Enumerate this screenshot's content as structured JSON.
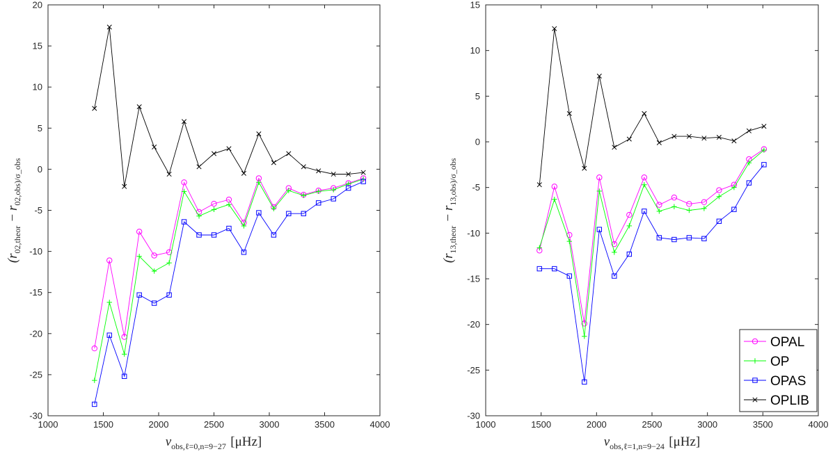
{
  "chart_data": [
    {
      "type": "line",
      "xlabel": "ν_obs,ℓ=0,n=9−27 [μHz]",
      "ylabel": "(r_02,theor − r_02,obs)/σ_obs",
      "xlim": [
        1000,
        4000
      ],
      "ylim": [
        -30,
        20
      ],
      "x_ticks": [
        "1000",
        "1500",
        "2000",
        "2500",
        "3000",
        "3500",
        "4000"
      ],
      "y_ticks": [
        "-30",
        "-25",
        "-20",
        "-15",
        "-10",
        "-5",
        "0",
        "5",
        "10",
        "15",
        "20"
      ],
      "x": [
        1420,
        1555,
        1690,
        1825,
        1960,
        2095,
        2230,
        2365,
        2500,
        2635,
        2770,
        2905,
        3040,
        3175,
        3310,
        3445,
        3580,
        3715,
        3850
      ],
      "series": [
        {
          "name": "OPAL",
          "color": "#ff00ff",
          "marker": "circle",
          "values": [
            -21.8,
            -11.1,
            -20.4,
            -7.6,
            -10.5,
            -10.1,
            -1.6,
            -5.2,
            -4.2,
            -3.7,
            -6.5,
            -1.1,
            -4.6,
            -2.3,
            -3.1,
            -2.6,
            -2.3,
            -1.7,
            -1.1
          ]
        },
        {
          "name": "OP",
          "color": "#00ff00",
          "marker": "plus",
          "values": [
            -25.7,
            -16.2,
            -22.5,
            -10.6,
            -12.4,
            -11.4,
            -2.7,
            -5.7,
            -4.9,
            -4.3,
            -6.9,
            -1.6,
            -4.8,
            -2.6,
            -3.2,
            -2.7,
            -2.5,
            -1.8,
            -1.2
          ]
        },
        {
          "name": "OPAS",
          "color": "#0000ff",
          "marker": "square",
          "values": [
            -28.6,
            -20.2,
            -25.2,
            -15.3,
            -16.3,
            -15.3,
            -6.4,
            -8.0,
            -8.0,
            -7.2,
            -10.1,
            -5.3,
            -8.0,
            -5.4,
            -5.4,
            -4.1,
            -3.6,
            -2.3,
            -1.5
          ]
        },
        {
          "name": "OPLIB",
          "color": "#000000",
          "marker": "cross",
          "values": [
            7.4,
            17.3,
            -2.1,
            7.6,
            2.7,
            -0.6,
            5.8,
            0.3,
            1.9,
            2.5,
            -0.5,
            4.3,
            0.8,
            1.9,
            0.3,
            -0.2,
            -0.6,
            -0.6,
            -0.4
          ]
        }
      ]
    },
    {
      "type": "line",
      "xlabel": "ν_obs,ℓ=1,n=9−24 [μHz]",
      "ylabel": "(r_13,theor − r_13,obs)/σ_obs",
      "xlim": [
        1000,
        4000
      ],
      "ylim": [
        -30,
        15
      ],
      "x_ticks": [
        "1000",
        "1500",
        "2000",
        "2500",
        "3000",
        "3500",
        "4000"
      ],
      "y_ticks": [
        "-30",
        "-25",
        "-20",
        "-15",
        "-10",
        "-5",
        "0",
        "5",
        "10",
        "15"
      ],
      "x": [
        1485,
        1620,
        1755,
        1890,
        2025,
        2160,
        2295,
        2430,
        2565,
        2700,
        2835,
        2970,
        3105,
        3240,
        3375,
        3510
      ],
      "legend": {
        "position": "bottom-right",
        "entries": [
          "OPAL",
          "OP",
          "OPAS",
          "OPLIB"
        ]
      },
      "series": [
        {
          "name": "OPAL",
          "color": "#ff00ff",
          "marker": "circle",
          "values": [
            -11.9,
            -4.9,
            -10.2,
            -19.9,
            -3.9,
            -11.2,
            -8.0,
            -3.9,
            -6.9,
            -6.1,
            -6.8,
            -6.6,
            -5.3,
            -4.7,
            -1.9,
            -0.8
          ]
        },
        {
          "name": "OP",
          "color": "#00ff00",
          "marker": "plus",
          "values": [
            -11.6,
            -6.3,
            -10.9,
            -21.3,
            -5.4,
            -12.1,
            -9.2,
            -4.7,
            -7.6,
            -7.1,
            -7.5,
            -7.3,
            -6.0,
            -5.0,
            -2.3,
            -0.9
          ]
        },
        {
          "name": "OPAS",
          "color": "#0000ff",
          "marker": "square",
          "values": [
            -13.9,
            -13.9,
            -14.7,
            -26.3,
            -9.6,
            -14.7,
            -12.3,
            -7.6,
            -10.5,
            -10.7,
            -10.5,
            -10.6,
            -8.7,
            -7.4,
            -4.5,
            -2.5
          ]
        },
        {
          "name": "OPLIB",
          "color": "#000000",
          "marker": "cross",
          "values": [
            -4.7,
            12.4,
            3.1,
            -2.9,
            7.2,
            -0.6,
            0.3,
            3.1,
            -0.1,
            0.6,
            0.6,
            0.4,
            0.5,
            0.1,
            1.2,
            1.7
          ]
        }
      ]
    }
  ]
}
